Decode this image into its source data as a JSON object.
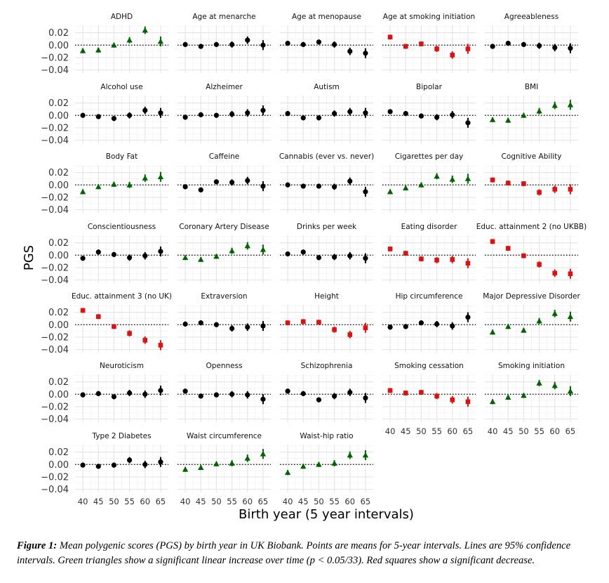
{
  "chart_data": {
    "type": "scatter",
    "layout": "facet-grid",
    "ylabel": "PGS",
    "xlabel": "Birth year (5 year intervals)",
    "x": [
      40,
      45,
      50,
      55,
      60,
      65
    ],
    "y_ticks": [
      0.02,
      0.0,
      -0.02,
      -0.04
    ],
    "ylim": [
      -0.045,
      0.032
    ],
    "xlim": [
      37.5,
      67.5
    ],
    "reference_line_y": 0,
    "grid": true,
    "colors": {
      "increase": "#006400",
      "decrease": "#e01010",
      "none": "#000000"
    },
    "legend": {
      "increase": "Green triangles show a significant linear increase over time (p < 0.05/33).",
      "decrease": "Red squares show a significant decrease."
    },
    "panels": [
      {
        "name": "ADHD",
        "trend": "increase",
        "values": [
          -0.009,
          -0.008,
          0.0,
          0.008,
          0.024,
          0.006
        ],
        "ci": [
          0.004,
          0.004,
          0.004,
          0.005,
          0.006,
          0.008
        ]
      },
      {
        "name": "Age at menarche",
        "trend": "none",
        "values": [
          0.001,
          -0.002,
          0.001,
          0.001,
          0.008,
          0.0
        ],
        "ci": [
          0.004,
          0.004,
          0.004,
          0.005,
          0.006,
          0.008
        ]
      },
      {
        "name": "Age at menopause",
        "trend": "none",
        "values": [
          0.003,
          0.001,
          0.005,
          0.001,
          -0.01,
          -0.013
        ],
        "ci": [
          0.004,
          0.004,
          0.004,
          0.005,
          0.006,
          0.008
        ]
      },
      {
        "name": "Age at smoking initiation",
        "trend": "decrease",
        "values": [
          0.013,
          -0.002,
          0.002,
          -0.006,
          -0.016,
          -0.006
        ],
        "ci": [
          0.004,
          0.004,
          0.004,
          0.005,
          0.006,
          0.008
        ]
      },
      {
        "name": "Agreeableness",
        "trend": "none",
        "values": [
          -0.002,
          0.003,
          0.001,
          -0.001,
          -0.004,
          -0.005
        ],
        "ci": [
          0.004,
          0.004,
          0.004,
          0.005,
          0.006,
          0.008
        ]
      },
      {
        "name": "Alcohol use",
        "trend": "none",
        "values": [
          0.0,
          -0.002,
          -0.005,
          0.0,
          0.008,
          0.004
        ],
        "ci": [
          0.004,
          0.004,
          0.004,
          0.005,
          0.006,
          0.008
        ]
      },
      {
        "name": "Alzheimer",
        "trend": "none",
        "values": [
          -0.003,
          0.001,
          0.0,
          0.002,
          0.004,
          0.008
        ],
        "ci": [
          0.004,
          0.004,
          0.004,
          0.005,
          0.006,
          0.008
        ]
      },
      {
        "name": "Autism",
        "trend": "none",
        "values": [
          0.003,
          -0.004,
          -0.004,
          0.003,
          0.006,
          0.004
        ],
        "ci": [
          0.004,
          0.004,
          0.004,
          0.005,
          0.006,
          0.008
        ]
      },
      {
        "name": "Bipolar",
        "trend": "none",
        "values": [
          0.006,
          0.003,
          -0.001,
          -0.003,
          0.001,
          -0.012
        ],
        "ci": [
          0.004,
          0.004,
          0.004,
          0.005,
          0.006,
          0.008
        ]
      },
      {
        "name": "BMI",
        "trend": "increase",
        "values": [
          -0.007,
          -0.008,
          0.0,
          0.007,
          0.016,
          0.017
        ],
        "ci": [
          0.004,
          0.004,
          0.004,
          0.005,
          0.006,
          0.008
        ]
      },
      {
        "name": "Body Fat",
        "trend": "increase",
        "values": [
          -0.011,
          -0.003,
          0.001,
          0.0,
          0.011,
          0.013
        ],
        "ci": [
          0.004,
          0.004,
          0.004,
          0.005,
          0.006,
          0.008
        ]
      },
      {
        "name": "Caffeine",
        "trend": "none",
        "values": [
          -0.003,
          -0.008,
          0.005,
          0.004,
          0.007,
          -0.002
        ],
        "ci": [
          0.004,
          0.004,
          0.004,
          0.005,
          0.006,
          0.008
        ]
      },
      {
        "name": "Cannabis (ever vs. never)",
        "trend": "none",
        "values": [
          0.0,
          -0.002,
          -0.002,
          -0.003,
          0.006,
          -0.011
        ],
        "ci": [
          0.004,
          0.004,
          0.004,
          0.005,
          0.006,
          0.008
        ]
      },
      {
        "name": "Cigarettes per day",
        "trend": "increase",
        "values": [
          -0.011,
          -0.005,
          0.0,
          0.014,
          0.009,
          0.01
        ],
        "ci": [
          0.004,
          0.004,
          0.004,
          0.005,
          0.006,
          0.008
        ]
      },
      {
        "name": "Cognitive Ability",
        "trend": "decrease",
        "values": [
          0.008,
          0.003,
          0.002,
          -0.012,
          -0.007,
          -0.007
        ],
        "ci": [
          0.004,
          0.004,
          0.004,
          0.005,
          0.006,
          0.008
        ]
      },
      {
        "name": "Conscientiousness",
        "trend": "none",
        "values": [
          -0.005,
          0.005,
          0.001,
          -0.004,
          -0.001,
          0.006
        ],
        "ci": [
          0.004,
          0.004,
          0.004,
          0.005,
          0.006,
          0.008
        ]
      },
      {
        "name": "Coronary Artery Disease",
        "trend": "increase",
        "values": [
          -0.004,
          -0.007,
          -0.002,
          0.007,
          0.015,
          0.009
        ],
        "ci": [
          0.004,
          0.004,
          0.004,
          0.005,
          0.006,
          0.008
        ]
      },
      {
        "name": "Drinks per week",
        "trend": "none",
        "values": [
          0.002,
          0.005,
          -0.004,
          -0.003,
          -0.001,
          -0.005
        ],
        "ci": [
          0.004,
          0.004,
          0.004,
          0.005,
          0.006,
          0.008
        ]
      },
      {
        "name": "Eating disorder",
        "trend": "decrease",
        "values": [
          0.01,
          0.003,
          -0.006,
          -0.008,
          -0.007,
          -0.013
        ],
        "ci": [
          0.004,
          0.004,
          0.004,
          0.005,
          0.006,
          0.008
        ]
      },
      {
        "name": "Educ. attainment 2 (no UKBB)",
        "trend": "decrease",
        "values": [
          0.022,
          0.011,
          -0.001,
          -0.015,
          -0.029,
          -0.03
        ],
        "ci": [
          0.004,
          0.004,
          0.004,
          0.005,
          0.006,
          0.008
        ]
      },
      {
        "name": "Educ. attainment 3 (no UK)",
        "trend": "decrease",
        "values": [
          0.023,
          0.013,
          -0.003,
          -0.014,
          -0.025,
          -0.033
        ],
        "ci": [
          0.004,
          0.004,
          0.004,
          0.005,
          0.006,
          0.008
        ]
      },
      {
        "name": "Extraversion",
        "trend": "none",
        "values": [
          0.001,
          0.003,
          0.0,
          -0.006,
          -0.004,
          -0.002
        ],
        "ci": [
          0.004,
          0.004,
          0.004,
          0.005,
          0.006,
          0.008
        ]
      },
      {
        "name": "Height",
        "trend": "decrease",
        "values": [
          0.003,
          0.005,
          0.004,
          -0.008,
          -0.016,
          -0.005
        ],
        "ci": [
          0.004,
          0.004,
          0.004,
          0.005,
          0.006,
          0.008
        ]
      },
      {
        "name": "Hip circumference",
        "trend": "none",
        "values": [
          -0.004,
          -0.003,
          0.003,
          0.001,
          -0.002,
          0.012
        ],
        "ci": [
          0.004,
          0.004,
          0.004,
          0.005,
          0.006,
          0.008
        ]
      },
      {
        "name": "Major Depressive Disorder",
        "trend": "increase",
        "values": [
          -0.012,
          -0.003,
          -0.009,
          0.006,
          0.018,
          0.013
        ],
        "ci": [
          0.004,
          0.004,
          0.004,
          0.005,
          0.006,
          0.008
        ]
      },
      {
        "name": "Neuroticism",
        "trend": "none",
        "values": [
          -0.001,
          0.001,
          -0.004,
          0.002,
          0.0,
          0.006
        ],
        "ci": [
          0.004,
          0.004,
          0.004,
          0.005,
          0.006,
          0.008
        ]
      },
      {
        "name": "Openness",
        "trend": "none",
        "values": [
          0.005,
          -0.003,
          -0.001,
          0.0,
          -0.001,
          -0.008
        ],
        "ci": [
          0.004,
          0.004,
          0.004,
          0.005,
          0.006,
          0.008
        ]
      },
      {
        "name": "Schizophrenia",
        "trend": "none",
        "values": [
          0.005,
          0.001,
          -0.009,
          -0.003,
          0.003,
          -0.006
        ],
        "ci": [
          0.004,
          0.004,
          0.004,
          0.005,
          0.006,
          0.008
        ]
      },
      {
        "name": "Smoking cessation",
        "trend": "decrease",
        "values": [
          0.006,
          0.002,
          0.003,
          -0.003,
          -0.009,
          -0.012
        ],
        "ci": [
          0.004,
          0.004,
          0.004,
          0.005,
          0.006,
          0.008
        ]
      },
      {
        "name": "Smoking initiation",
        "trend": "increase",
        "values": [
          -0.012,
          -0.005,
          -0.002,
          0.018,
          0.014,
          0.005
        ],
        "ci": [
          0.004,
          0.004,
          0.004,
          0.005,
          0.006,
          0.008
        ]
      },
      {
        "name": "Type 2 Diabetes",
        "trend": "none",
        "values": [
          -0.001,
          -0.003,
          -0.001,
          0.007,
          0.0,
          0.004
        ],
        "ci": [
          0.004,
          0.004,
          0.004,
          0.005,
          0.006,
          0.008
        ]
      },
      {
        "name": "Waist circumference",
        "trend": "increase",
        "values": [
          -0.008,
          -0.005,
          0.001,
          0.002,
          0.01,
          0.017
        ],
        "ci": [
          0.004,
          0.004,
          0.004,
          0.005,
          0.006,
          0.008
        ]
      },
      {
        "name": "Waist-hip ratio",
        "trend": "increase",
        "values": [
          -0.013,
          -0.003,
          0.0,
          0.002,
          0.015,
          0.015
        ],
        "ci": [
          0.004,
          0.004,
          0.004,
          0.005,
          0.006,
          0.008
        ]
      }
    ]
  },
  "caption": {
    "label": "Figure 1:",
    "text": " Mean polygenic scores (PGS) by birth year in UK Biobank. Points are means for 5-year intervals. Lines are 95% confidence intervals. Green triangles show a significant linear increase over time (p < 0.05/33). Red squares show a significant decrease."
  }
}
